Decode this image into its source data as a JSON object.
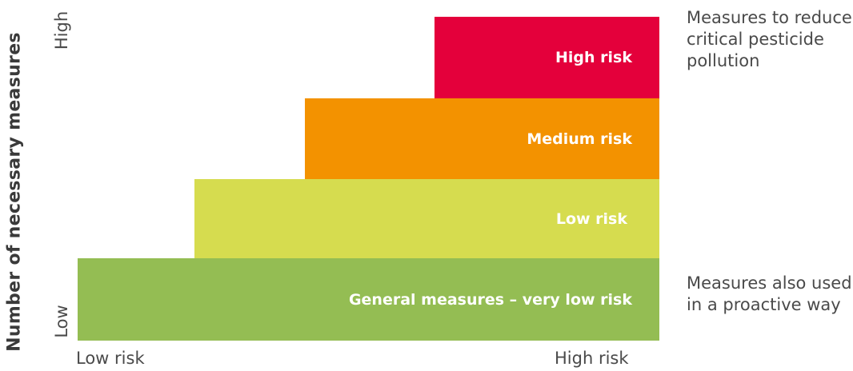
{
  "y_axis": {
    "title": "Number of necessary measures",
    "tick_high": "High",
    "tick_low": "Low"
  },
  "x_axis": {
    "tick_low": "Low risk",
    "tick_high": "High risk"
  },
  "steps": [
    {
      "label": "General measures – very low risk",
      "color": "#94bd53"
    },
    {
      "label": "Low risk",
      "color": "#d6dc4f"
    },
    {
      "label": "Medium risk",
      "color": "#f39200"
    },
    {
      "label": "High risk",
      "color": "#e4003b"
    }
  ],
  "notes": {
    "top": "Measures to reduce critical pesticide pollution",
    "bottom": "Measures also used in a proactive way"
  }
}
